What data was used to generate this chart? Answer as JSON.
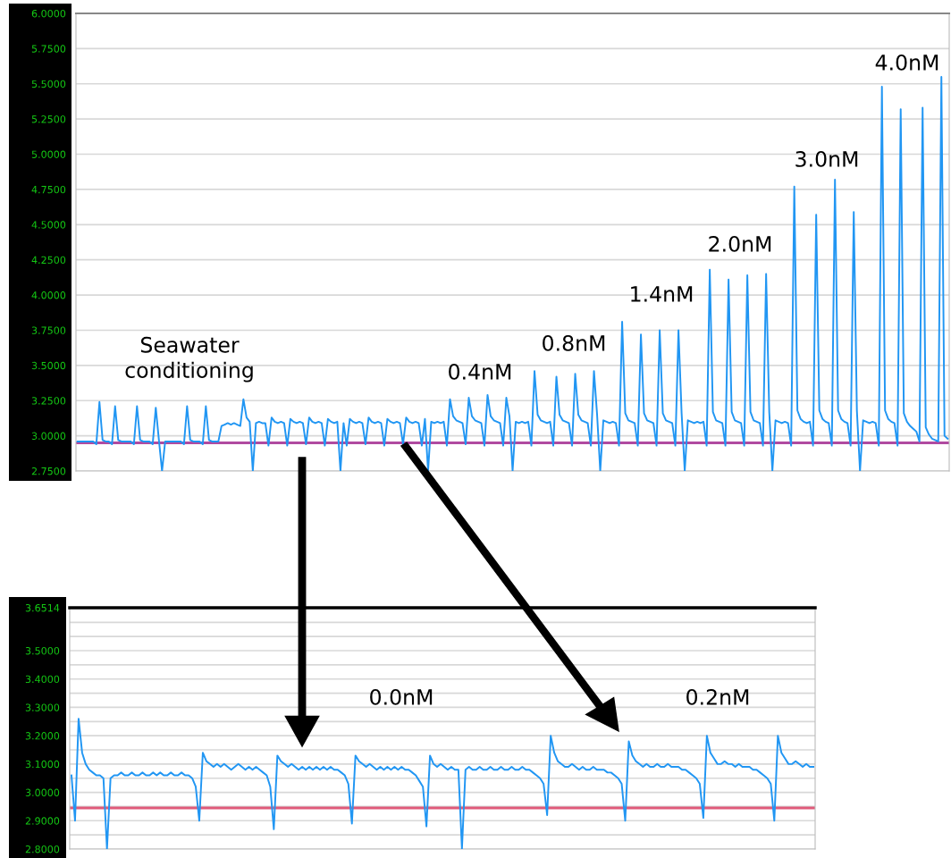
{
  "chart_data": [
    {
      "type": "line",
      "tick_labels": "y",
      "grid": "y",
      "categories": [
        null,
        null,
        null,
        null,
        null,
        null,
        null,
        null,
        null,
        null,
        null,
        null,
        null,
        null,
        null,
        null,
        null,
        null,
        null,
        null,
        null,
        null,
        null,
        null,
        null,
        null,
        null,
        null,
        null,
        null,
        null,
        null,
        null,
        null,
        null,
        null,
        null,
        null,
        null,
        null,
        null,
        null,
        null,
        null,
        null,
        null,
        null,
        null,
        null,
        null,
        null,
        null,
        null,
        null,
        null,
        null,
        null,
        null,
        null,
        null,
        null,
        null,
        null,
        null,
        null,
        null,
        null,
        null,
        null,
        null,
        null,
        null,
        null,
        null,
        null,
        null,
        null,
        null,
        null,
        null,
        null,
        null,
        null,
        null,
        null,
        null,
        null,
        null,
        null,
        null,
        null,
        null,
        null,
        null,
        null,
        null,
        null,
        null,
        null,
        null,
        null,
        null,
        null,
        null,
        null,
        null,
        null,
        null,
        null,
        null,
        null,
        null,
        null,
        null,
        null,
        null,
        null,
        null,
        null,
        null,
        null,
        null,
        null,
        null,
        null,
        null,
        null,
        null,
        null,
        null,
        null,
        null,
        null,
        null,
        null,
        null,
        null,
        null,
        null,
        null,
        null,
        null,
        null,
        null,
        null,
        null,
        null,
        null,
        null,
        null,
        null,
        null,
        null,
        null,
        null,
        null,
        null,
        null,
        null,
        null,
        null,
        null,
        null,
        null,
        null,
        null,
        null,
        null,
        null,
        null,
        null,
        null,
        null,
        null,
        null,
        null,
        null,
        null,
        null,
        null,
        null,
        null,
        null,
        null,
        null,
        null,
        null,
        null,
        null,
        null,
        null,
        null,
        null,
        null,
        null,
        null,
        null,
        null,
        null,
        null,
        null,
        null,
        null,
        null,
        null,
        null,
        null,
        null,
        null,
        null,
        null,
        null,
        null,
        null,
        null,
        null,
        null,
        null,
        null,
        null,
        null,
        null,
        null,
        null,
        null,
        null,
        null,
        null,
        null,
        null,
        null,
        null,
        null,
        null,
        null,
        null,
        null,
        null,
        null,
        null,
        null,
        null,
        null,
        null,
        null,
        null,
        null,
        null,
        null,
        null,
        null,
        null,
        null,
        null,
        null,
        null,
        null,
        null,
        null,
        null,
        null,
        null,
        null,
        null,
        null,
        null,
        null,
        null,
        null,
        null,
        null,
        null,
        null,
        null,
        null,
        null,
        null,
        null,
        null
      ],
      "ylim": [
        2.75,
        6.0
      ],
      "yticks": [
        {
          "value": 2.75,
          "label": "2.7500"
        },
        {
          "value": 3.0,
          "label": "3.0000"
        },
        {
          "value": 3.25,
          "label": "3.2500"
        },
        {
          "value": 3.5,
          "label": "3.5000"
        },
        {
          "value": 3.75,
          "label": "3.7500"
        },
        {
          "value": 4.0,
          "label": "4.0000"
        },
        {
          "value": 4.25,
          "label": "4.2500"
        },
        {
          "value": 4.5,
          "label": "4.5000"
        },
        {
          "value": 4.75,
          "label": "4.7500"
        },
        {
          "value": 5.0,
          "label": "5.0000"
        },
        {
          "value": 5.25,
          "label": "5.2500"
        },
        {
          "value": 5.5,
          "label": "5.5000"
        },
        {
          "value": 5.75,
          "label": "5.7500"
        },
        {
          "value": 6.0,
          "label": "6.0000"
        }
      ],
      "ref_lines": [
        {
          "axis": "y",
          "value": 2.95,
          "color": "#b04aa0"
        }
      ],
      "annotations": [
        "Seawater\nconditioning",
        "0.4nM",
        "0.8nM",
        "1.4nM",
        "2.0nM",
        "3.0nM",
        "4.0nM"
      ],
      "series": [
        {
          "color": "#2196f3",
          "values": [
            2.96,
            2.96,
            2.96,
            2.96,
            2.96,
            2.96,
            2.94,
            3.24,
            2.97,
            2.96,
            2.96,
            2.94,
            3.21,
            2.97,
            2.96,
            2.96,
            2.96,
            2.96,
            2.94,
            3.21,
            2.97,
            2.96,
            2.96,
            2.96,
            2.94,
            3.2,
            2.97,
            2.75,
            2.96,
            2.96,
            2.96,
            2.96,
            2.96,
            2.96,
            2.94,
            3.21,
            2.97,
            2.96,
            2.96,
            2.96,
            2.94,
            3.21,
            2.97,
            2.96,
            2.96,
            2.96,
            3.07,
            3.08,
            3.09,
            3.08,
            3.09,
            3.08,
            3.07,
            3.26,
            3.13,
            3.1,
            2.75,
            3.09,
            3.1,
            3.09,
            3.09,
            2.93,
            3.13,
            3.1,
            3.09,
            3.1,
            3.09,
            2.93,
            3.12,
            3.1,
            3.09,
            3.1,
            3.09,
            2.94,
            3.13,
            3.1,
            3.09,
            3.1,
            3.09,
            2.93,
            3.12,
            3.1,
            3.09,
            3.1,
            2.75,
            3.09,
            2.93,
            3.12,
            3.1,
            3.09,
            3.1,
            3.09,
            2.94,
            3.13,
            3.1,
            3.09,
            3.1,
            3.09,
            2.93,
            3.12,
            3.1,
            3.09,
            3.1,
            3.09,
            2.94,
            3.13,
            3.1,
            3.09,
            3.1,
            3.09,
            2.93,
            3.12,
            2.75,
            3.1,
            3.09,
            3.1,
            3.09,
            3.1,
            2.93,
            3.26,
            3.14,
            3.11,
            3.1,
            3.09,
            2.94,
            3.27,
            3.14,
            3.11,
            3.1,
            3.09,
            2.93,
            3.29,
            3.14,
            3.11,
            3.1,
            3.09,
            2.93,
            3.27,
            3.14,
            2.75,
            3.1,
            3.09,
            3.1,
            3.09,
            3.1,
            2.93,
            3.46,
            3.15,
            3.11,
            3.1,
            3.09,
            3.1,
            2.93,
            3.42,
            3.15,
            3.11,
            3.1,
            3.09,
            2.93,
            3.44,
            3.15,
            3.11,
            3.1,
            3.09,
            2.93,
            3.46,
            3.15,
            2.75,
            3.11,
            3.1,
            3.09,
            3.1,
            3.09,
            2.93,
            3.81,
            3.16,
            3.11,
            3.1,
            3.09,
            2.93,
            3.72,
            3.16,
            3.11,
            3.1,
            3.09,
            2.93,
            3.75,
            3.16,
            3.11,
            3.1,
            3.09,
            2.93,
            3.75,
            3.16,
            2.75,
            3.11,
            3.1,
            3.09,
            3.1,
            3.09,
            3.1,
            2.93,
            4.18,
            3.17,
            3.11,
            3.1,
            3.09,
            2.93,
            4.11,
            3.17,
            3.11,
            3.1,
            3.09,
            2.93,
            4.14,
            3.17,
            3.11,
            3.1,
            3.09,
            2.93,
            4.15,
            3.17,
            2.75,
            3.11,
            3.1,
            3.09,
            3.1,
            3.09,
            2.93,
            4.77,
            3.18,
            3.12,
            3.1,
            3.09,
            3.1,
            2.93,
            4.57,
            3.18,
            3.12,
            3.1,
            3.09,
            2.93,
            4.82,
            3.18,
            3.12,
            3.1,
            3.09,
            2.93,
            4.59,
            3.18,
            2.75,
            3.11,
            3.1,
            3.09,
            3.1,
            3.09,
            2.93,
            5.48,
            3.18,
            3.12,
            3.1,
            3.09,
            2.93,
            5.32,
            3.16,
            3.1,
            3.07,
            3.05,
            3.03,
            2.96,
            5.33,
            3.06,
            3.01,
            2.98,
            2.97,
            2.96,
            5.55,
            3.0,
            2.98
          ]
        }
      ]
    },
    {
      "type": "line",
      "tick_labels": "y",
      "grid": "y",
      "categories": [
        null,
        null,
        null,
        null,
        null,
        null,
        null,
        null,
        null,
        null,
        null,
        null,
        null,
        null,
        null,
        null,
        null,
        null,
        null,
        null,
        null,
        null,
        null,
        null,
        null,
        null,
        null,
        null,
        null,
        null,
        null,
        null,
        null,
        null,
        null,
        null,
        null,
        null,
        null,
        null,
        null,
        null,
        null,
        null,
        null,
        null,
        null,
        null,
        null,
        null,
        null,
        null,
        null,
        null,
        null,
        null,
        null,
        null,
        null,
        null,
        null,
        null,
        null,
        null,
        null,
        null,
        null,
        null,
        null,
        null,
        null,
        null,
        null,
        null,
        null,
        null,
        null,
        null,
        null,
        null,
        null,
        null,
        null,
        null,
        null,
        null,
        null,
        null,
        null,
        null,
        null,
        null,
        null,
        null,
        null,
        null,
        null,
        null,
        null,
        null,
        null,
        null,
        null,
        null,
        null,
        null,
        null,
        null,
        null,
        null,
        null,
        null,
        null,
        null,
        null,
        null,
        null,
        null,
        null,
        null,
        null,
        null,
        null,
        null,
        null,
        null,
        null,
        null,
        null,
        null,
        null,
        null,
        null,
        null,
        null,
        null,
        null,
        null,
        null,
        null,
        null,
        null,
        null,
        null,
        null,
        null,
        null,
        null,
        null,
        null,
        null,
        null,
        null,
        null,
        null,
        null,
        null,
        null,
        null,
        null,
        null,
        null,
        null,
        null,
        null,
        null,
        null,
        null,
        null,
        null,
        null,
        null,
        null,
        null,
        null,
        null,
        null,
        null,
        null,
        null,
        null,
        null,
        null,
        null,
        null,
        null,
        null,
        null,
        null,
        null,
        null,
        null,
        null,
        null,
        null,
        null,
        null,
        null,
        null,
        null,
        null,
        null,
        null,
        null,
        null,
        null,
        null,
        null,
        null,
        null
      ],
      "ylim": [
        2.8,
        3.6514
      ],
      "yticks": [
        {
          "value": 2.8,
          "label": "2.8000"
        },
        {
          "value": 2.85,
          "label": null
        },
        {
          "value": 2.9,
          "label": "2.9000"
        },
        {
          "value": 2.95,
          "label": null
        },
        {
          "value": 3.0,
          "label": "3.0000"
        },
        {
          "value": 3.05,
          "label": null
        },
        {
          "value": 3.1,
          "label": "3.1000"
        },
        {
          "value": 3.15,
          "label": null
        },
        {
          "value": 3.2,
          "label": "3.2000"
        },
        {
          "value": 3.25,
          "label": null
        },
        {
          "value": 3.3,
          "label": "3.3000"
        },
        {
          "value": 3.35,
          "label": null
        },
        {
          "value": 3.4,
          "label": "3.4000"
        },
        {
          "value": 3.45,
          "label": null
        },
        {
          "value": 3.5,
          "label": "3.5000"
        },
        {
          "value": 3.55,
          "label": null
        },
        {
          "value": 3.6,
          "label": null
        },
        {
          "value": 3.6514,
          "label": "3.6514"
        }
      ],
      "ref_lines": [
        {
          "axis": "y",
          "value": 2.945,
          "color": "#e05a7a"
        }
      ],
      "annotations": [
        "0.0nM",
        "0.2nM"
      ],
      "series": [
        {
          "color": "#2196f3",
          "values": [
            3.06,
            2.9,
            3.26,
            3.14,
            3.1,
            3.08,
            3.07,
            3.06,
            3.06,
            3.05,
            2.8,
            3.05,
            3.06,
            3.06,
            3.07,
            3.06,
            3.06,
            3.07,
            3.06,
            3.06,
            3.07,
            3.06,
            3.06,
            3.07,
            3.06,
            3.07,
            3.06,
            3.06,
            3.07,
            3.06,
            3.06,
            3.07,
            3.06,
            3.06,
            3.05,
            3.02,
            2.9,
            3.14,
            3.11,
            3.1,
            3.09,
            3.1,
            3.09,
            3.1,
            3.09,
            3.08,
            3.09,
            3.1,
            3.09,
            3.08,
            3.09,
            3.08,
            3.09,
            3.08,
            3.07,
            3.06,
            3.02,
            2.87,
            3.13,
            3.11,
            3.1,
            3.09,
            3.1,
            3.09,
            3.08,
            3.09,
            3.08,
            3.09,
            3.08,
            3.09,
            3.08,
            3.09,
            3.08,
            3.09,
            3.08,
            3.08,
            3.07,
            3.06,
            3.03,
            2.89,
            3.13,
            3.11,
            3.1,
            3.09,
            3.1,
            3.09,
            3.08,
            3.09,
            3.08,
            3.09,
            3.08,
            3.09,
            3.08,
            3.09,
            3.08,
            3.08,
            3.07,
            3.06,
            3.04,
            3.02,
            2.88,
            3.13,
            3.1,
            3.09,
            3.1,
            3.09,
            3.08,
            3.09,
            3.08,
            3.08,
            2.8,
            3.08,
            3.09,
            3.08,
            3.08,
            3.09,
            3.08,
            3.08,
            3.09,
            3.08,
            3.08,
            3.09,
            3.08,
            3.08,
            3.09,
            3.08,
            3.08,
            3.09,
            3.08,
            3.08,
            3.07,
            3.06,
            3.05,
            3.03,
            2.92,
            3.2,
            3.14,
            3.11,
            3.1,
            3.09,
            3.09,
            3.1,
            3.09,
            3.08,
            3.09,
            3.08,
            3.08,
            3.09,
            3.08,
            3.08,
            3.08,
            3.07,
            3.07,
            3.06,
            3.05,
            3.03,
            2.9,
            3.18,
            3.13,
            3.11,
            3.1,
            3.09,
            3.1,
            3.09,
            3.09,
            3.1,
            3.09,
            3.09,
            3.1,
            3.09,
            3.09,
            3.09,
            3.08,
            3.08,
            3.07,
            3.06,
            3.05,
            3.03,
            2.91,
            3.2,
            3.14,
            3.12,
            3.1,
            3.1,
            3.11,
            3.1,
            3.1,
            3.09,
            3.1,
            3.09,
            3.09,
            3.09,
            3.08,
            3.08,
            3.07,
            3.06,
            3.05,
            3.03,
            2.9,
            3.2,
            3.14,
            3.12,
            3.1,
            3.1,
            3.11,
            3.1,
            3.09,
            3.1,
            3.09,
            3.09
          ]
        }
      ]
    }
  ]
}
